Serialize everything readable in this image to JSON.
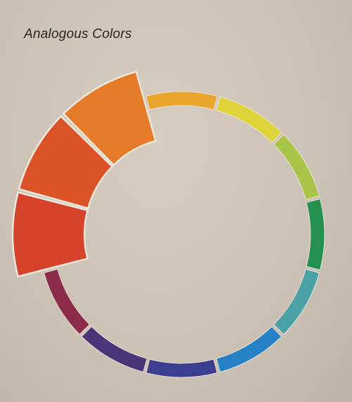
{
  "page": {
    "title": "Analogous Colors"
  },
  "wheel": {
    "segments": [
      {
        "name": "red-orange-segment",
        "color": "#d4432a",
        "highlighted": true
      },
      {
        "name": "orange-red-segment",
        "color": "#dc5227",
        "highlighted": true
      },
      {
        "name": "orange-segment",
        "color": "#e57a28",
        "highlighted": true
      },
      {
        "name": "yellow-orange-segment",
        "color": "#e9a52c",
        "highlighted": false
      },
      {
        "name": "yellow-segment",
        "color": "#dfd33c",
        "highlighted": false
      },
      {
        "name": "yellow-green-segment",
        "color": "#aac44a",
        "highlighted": false
      },
      {
        "name": "green-segment",
        "color": "#23904f",
        "highlighted": false
      },
      {
        "name": "blue-green-segment",
        "color": "#4aa2a7",
        "highlighted": false
      },
      {
        "name": "blue-segment",
        "color": "#2581c6",
        "highlighted": false
      },
      {
        "name": "blue-violet-segment",
        "color": "#3c3f8f",
        "highlighted": false
      },
      {
        "name": "violet-segment",
        "color": "#4a3579",
        "highlighted": false
      },
      {
        "name": "red-violet-segment",
        "color": "#8b2c4b",
        "highlighted": false
      }
    ]
  }
}
